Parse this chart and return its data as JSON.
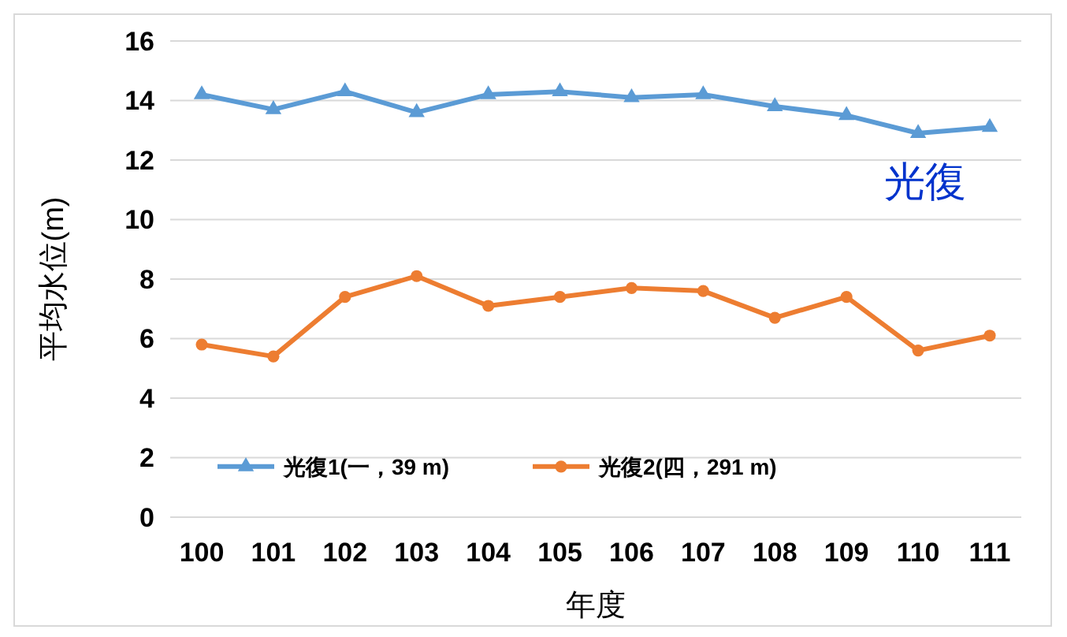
{
  "chart_data": {
    "type": "line",
    "xlabel": "年度",
    "ylabel": "平均水位(m)",
    "annotations": [
      "光復"
    ],
    "categories": [
      "100",
      "101",
      "102",
      "103",
      "104",
      "105",
      "106",
      "107",
      "108",
      "109",
      "110",
      "111"
    ],
    "series": [
      {
        "name": "光復1(一，39 m)",
        "color": "#5b9bd5",
        "marker": "triangle",
        "values": [
          14.2,
          13.7,
          14.3,
          13.6,
          14.2,
          14.3,
          14.1,
          14.2,
          13.8,
          13.5,
          12.9,
          13.1
        ]
      },
      {
        "name": "光復2(四，291 m)",
        "color": "#ed7d31",
        "marker": "circle",
        "values": [
          5.8,
          5.4,
          7.4,
          8.1,
          7.1,
          7.4,
          7.7,
          7.6,
          6.7,
          7.4,
          5.6,
          6.1
        ]
      }
    ],
    "ylim": [
      0,
      16
    ],
    "yticks": [
      0,
      2,
      4,
      6,
      8,
      10,
      12,
      14,
      16
    ],
    "grid": "y",
    "legend": "bottom left"
  }
}
